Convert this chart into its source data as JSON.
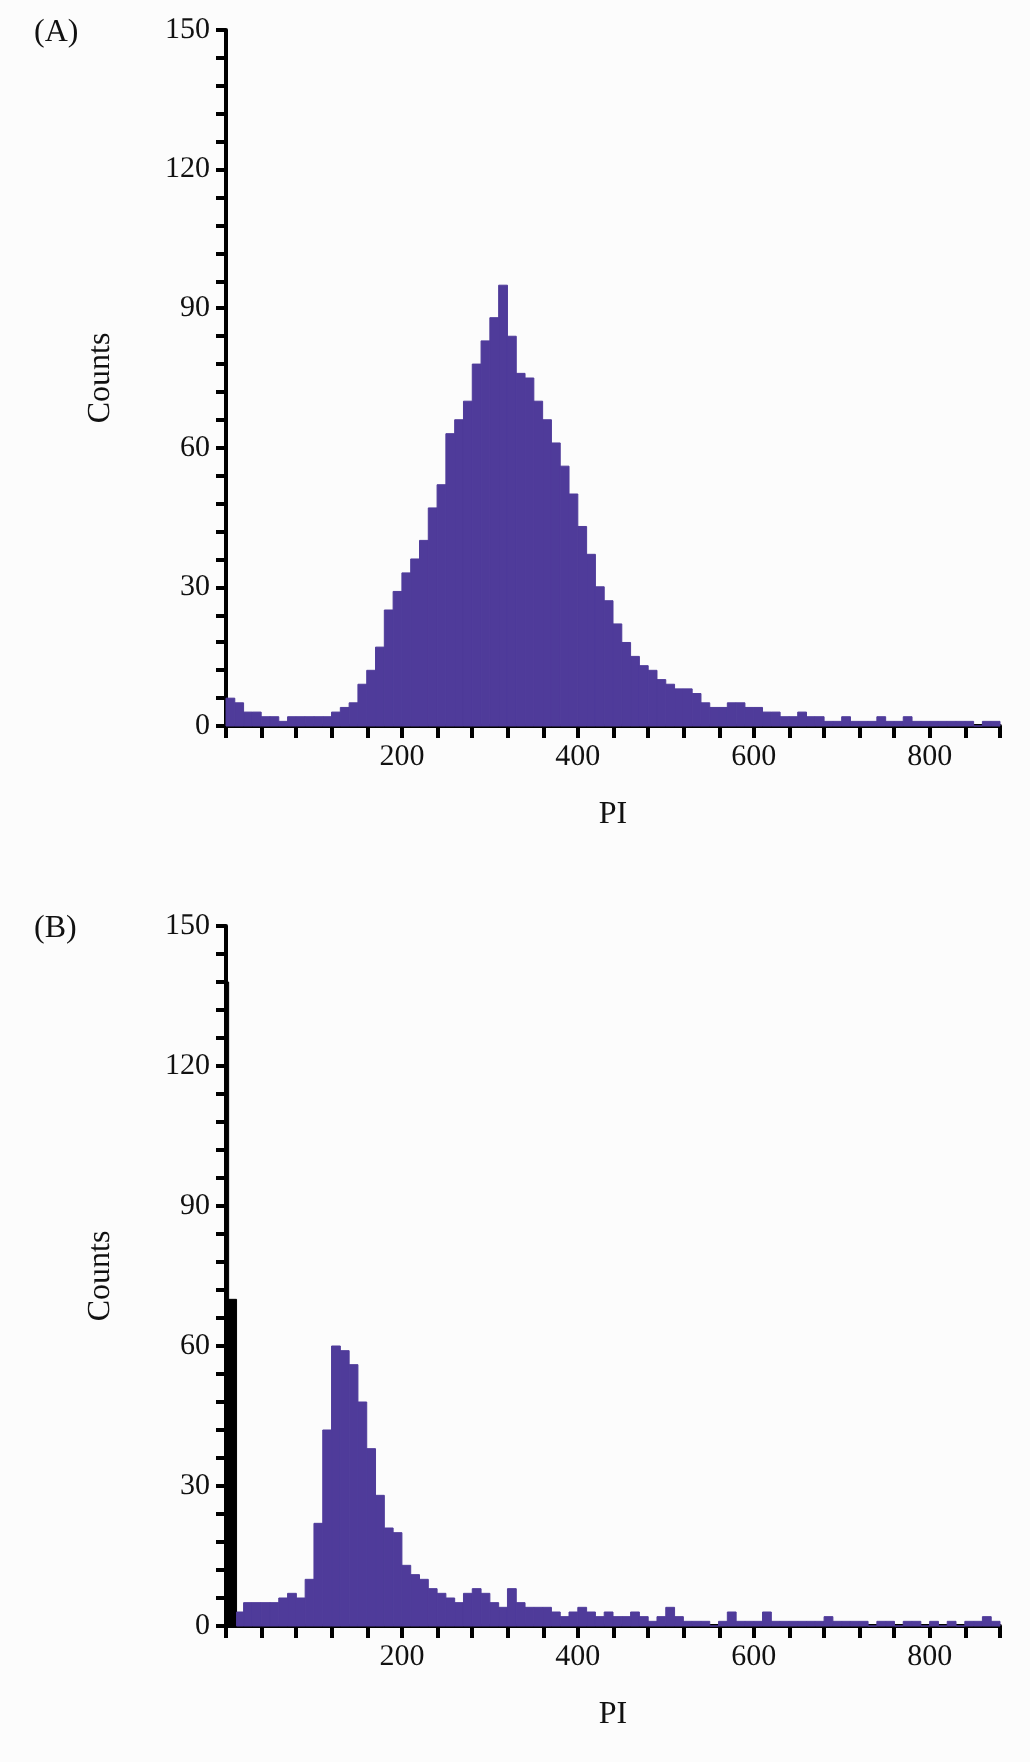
{
  "chart_data": [
    {
      "type": "histogram",
      "title": "(A)",
      "xlabel": "PI",
      "ylabel": "Counts",
      "color": "#4f3b9a",
      "grid": false,
      "bins": [
        0,
        10,
        20,
        30,
        40,
        50,
        60,
        70,
        80,
        90,
        100,
        110,
        120,
        130,
        140,
        150,
        160,
        170,
        180,
        190,
        200,
        210,
        220,
        230,
        240,
        250,
        260,
        270,
        280,
        290,
        300,
        310,
        320,
        330,
        340,
        350,
        360,
        370,
        380,
        390,
        400,
        410,
        420,
        430,
        440,
        450,
        460,
        470,
        480,
        490,
        500,
        510,
        520,
        530,
        540,
        550,
        560,
        570,
        580,
        590,
        600,
        610,
        620,
        630,
        640,
        650,
        660,
        670,
        680,
        690,
        700,
        710,
        720,
        730,
        740,
        750,
        760,
        770,
        780,
        790,
        800,
        810,
        820,
        830,
        840,
        850,
        860,
        870,
        880
      ],
      "values": [
        6,
        5,
        3,
        3,
        2,
        2,
        1,
        2,
        2,
        2,
        2,
        2,
        3,
        4,
        5,
        9,
        12,
        17,
        25,
        29,
        33,
        36,
        40,
        47,
        52,
        63,
        66,
        70,
        78,
        83,
        88,
        95,
        84,
        76,
        75,
        70,
        66,
        61,
        56,
        50,
        43,
        37,
        30,
        27,
        22,
        18,
        15,
        13,
        12,
        10,
        9,
        8,
        8,
        7,
        5,
        4,
        4,
        5,
        5,
        4,
        4,
        3,
        3,
        2,
        2,
        3,
        2,
        2,
        1,
        1,
        2,
        1,
        1,
        1,
        2,
        1,
        1,
        2,
        1,
        1,
        1,
        1,
        1,
        1,
        1,
        0,
        1,
        1
      ],
      "xlim": [
        0,
        880
      ],
      "xticks": [
        {
          "value": 0,
          "label": null
        },
        {
          "value": 40,
          "label": null
        },
        {
          "value": 80,
          "label": null
        },
        {
          "value": 120,
          "label": null
        },
        {
          "value": 160,
          "label": null
        },
        200,
        {
          "value": 240,
          "label": null
        },
        {
          "value": 280,
          "label": null
        },
        {
          "value": 320,
          "label": null
        },
        {
          "value": 360,
          "label": null
        },
        400,
        {
          "value": 440,
          "label": null
        },
        {
          "value": 480,
          "label": null
        },
        {
          "value": 520,
          "label": null
        },
        {
          "value": 560,
          "label": null
        },
        600,
        {
          "value": 640,
          "label": null
        },
        {
          "value": 680,
          "label": null
        },
        {
          "value": 720,
          "label": null
        },
        {
          "value": 760,
          "label": null
        },
        800,
        {
          "value": 840,
          "label": null
        },
        {
          "value": 880,
          "label": null
        }
      ],
      "ylim": [
        0,
        150
      ],
      "yticks": [
        0,
        {
          "value": 6,
          "label": null
        },
        {
          "value": 12,
          "label": null
        },
        {
          "value": 18,
          "label": null
        },
        {
          "value": 24,
          "label": null
        },
        30,
        {
          "value": 36,
          "label": null
        },
        {
          "value": 42,
          "label": null
        },
        {
          "value": 48,
          "label": null
        },
        {
          "value": 54,
          "label": null
        },
        60,
        {
          "value": 66,
          "label": null
        },
        {
          "value": 72,
          "label": null
        },
        {
          "value": 78,
          "label": null
        },
        {
          "value": 84,
          "label": null
        },
        90,
        {
          "value": 96,
          "label": null
        },
        {
          "value": 102,
          "label": null
        },
        {
          "value": 108,
          "label": null
        },
        {
          "value": 114,
          "label": null
        },
        120,
        {
          "value": 126,
          "label": null
        },
        {
          "value": 132,
          "label": null
        },
        {
          "value": 138,
          "label": null
        },
        {
          "value": 144,
          "label": null
        },
        150
      ]
    },
    {
      "type": "histogram",
      "title": "(B)",
      "xlabel": "PI",
      "ylabel": "Counts",
      "color": "#4f3b9a",
      "grid": false,
      "bins": [
        0,
        3,
        12,
        20,
        30,
        40,
        50,
        60,
        70,
        80,
        90,
        100,
        110,
        120,
        130,
        140,
        150,
        160,
        170,
        180,
        190,
        200,
        210,
        220,
        230,
        240,
        250,
        260,
        270,
        280,
        290,
        300,
        310,
        320,
        330,
        340,
        350,
        360,
        370,
        380,
        390,
        400,
        410,
        420,
        430,
        440,
        450,
        460,
        470,
        480,
        490,
        500,
        510,
        520,
        530,
        540,
        550,
        560,
        570,
        580,
        590,
        600,
        610,
        620,
        630,
        640,
        650,
        660,
        670,
        680,
        690,
        700,
        710,
        720,
        730,
        740,
        750,
        760,
        770,
        780,
        790,
        800,
        810,
        820,
        830,
        840,
        850,
        860,
        870,
        880
      ],
      "values": [
        138,
        70,
        3,
        5,
        5,
        5,
        5,
        6,
        7,
        6,
        10,
        22,
        42,
        60,
        59,
        56,
        48,
        38,
        28,
        21,
        20,
        13,
        11,
        10,
        8,
        7,
        6,
        5,
        7,
        8,
        7,
        5,
        4,
        8,
        5,
        4,
        4,
        4,
        3,
        2,
        3,
        4,
        3,
        2,
        3,
        2,
        2,
        3,
        2,
        1,
        2,
        4,
        2,
        1,
        1,
        1,
        0,
        1,
        3,
        1,
        1,
        1,
        3,
        1,
        1,
        1,
        1,
        1,
        1,
        2,
        1,
        1,
        1,
        1,
        0,
        1,
        1,
        0,
        1,
        1,
        0,
        1,
        0,
        1,
        0,
        1,
        1,
        2,
        1
      ],
      "colors": [
        "#000000",
        "#000000",
        null,
        null,
        null,
        null,
        null,
        null,
        null,
        null,
        null,
        null,
        null,
        null,
        null,
        null,
        null,
        null,
        null,
        null,
        null,
        null,
        null,
        null,
        null,
        null,
        null,
        null,
        null,
        null,
        null,
        null,
        null,
        null,
        null,
        null,
        null,
        null,
        null,
        null,
        null,
        null,
        null,
        null,
        null,
        null,
        null,
        null,
        null,
        null,
        null,
        null,
        null,
        null,
        null,
        null,
        null,
        null,
        null,
        null,
        null,
        null,
        null,
        null,
        null,
        null,
        null,
        null,
        null,
        null,
        null,
        null,
        null,
        null,
        null,
        null,
        null,
        null,
        null,
        null,
        null,
        null,
        null,
        null,
        null,
        null,
        null,
        null,
        null
      ],
      "xlim": [
        0,
        880
      ],
      "xticks": [
        {
          "value": 0,
          "label": null
        },
        {
          "value": 40,
          "label": null
        },
        {
          "value": 80,
          "label": null
        },
        {
          "value": 120,
          "label": null
        },
        {
          "value": 160,
          "label": null
        },
        200,
        {
          "value": 240,
          "label": null
        },
        {
          "value": 280,
          "label": null
        },
        {
          "value": 320,
          "label": null
        },
        {
          "value": 360,
          "label": null
        },
        400,
        {
          "value": 440,
          "label": null
        },
        {
          "value": 480,
          "label": null
        },
        {
          "value": 520,
          "label": null
        },
        {
          "value": 560,
          "label": null
        },
        600,
        {
          "value": 640,
          "label": null
        },
        {
          "value": 680,
          "label": null
        },
        {
          "value": 720,
          "label": null
        },
        {
          "value": 760,
          "label": null
        },
        800,
        {
          "value": 840,
          "label": null
        },
        {
          "value": 880,
          "label": null
        }
      ],
      "ylim": [
        0,
        150
      ],
      "yticks": [
        0,
        {
          "value": 6,
          "label": null
        },
        {
          "value": 12,
          "label": null
        },
        {
          "value": 18,
          "label": null
        },
        {
          "value": 24,
          "label": null
        },
        30,
        {
          "value": 36,
          "label": null
        },
        {
          "value": 42,
          "label": null
        },
        {
          "value": 48,
          "label": null
        },
        {
          "value": 54,
          "label": null
        },
        60,
        {
          "value": 66,
          "label": null
        },
        {
          "value": 72,
          "label": null
        },
        {
          "value": 78,
          "label": null
        },
        {
          "value": 84,
          "label": null
        },
        90,
        {
          "value": 96,
          "label": null
        },
        {
          "value": 102,
          "label": null
        },
        {
          "value": 108,
          "label": null
        },
        {
          "value": 114,
          "label": null
        },
        120,
        {
          "value": 126,
          "label": null
        },
        {
          "value": 132,
          "label": null
        },
        {
          "value": 138,
          "label": null
        },
        {
          "value": 144,
          "label": null
        },
        150
      ]
    }
  ]
}
